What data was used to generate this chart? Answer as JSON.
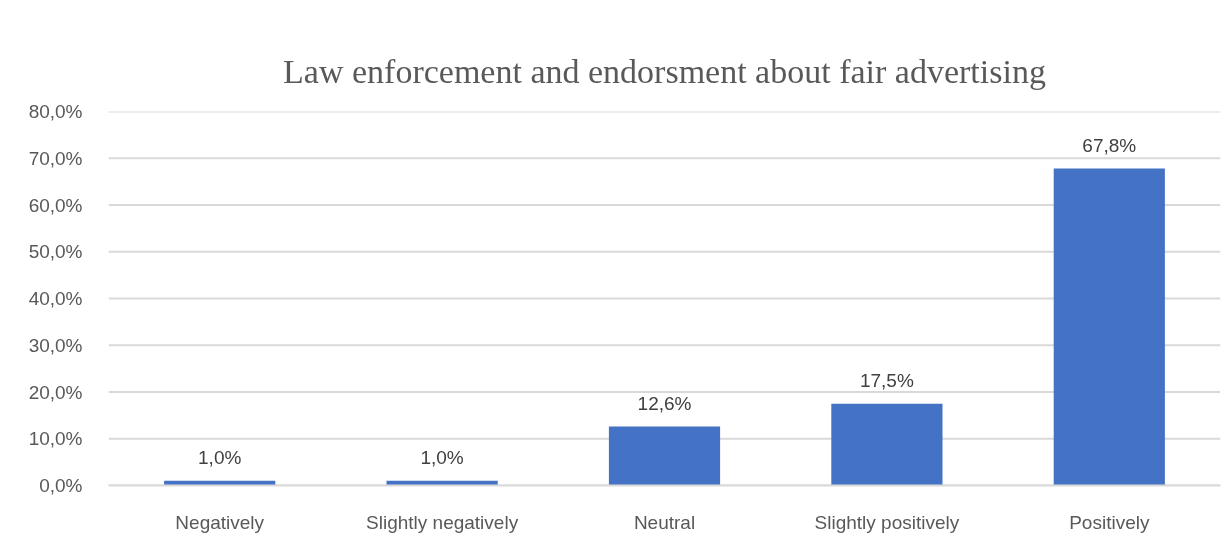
{
  "chart_data": {
    "type": "bar",
    "title": "Law enforcement and endorsment about fair advertising",
    "categories": [
      "Negatively",
      "Slightly negatively",
      "Neutral",
      "Slightly positively",
      "Positively"
    ],
    "values": [
      1.0,
      1.0,
      12.6,
      17.5,
      67.8
    ],
    "value_labels": [
      "1,0%",
      "1,0%",
      "12,6%",
      "17,5%",
      "67,8%"
    ],
    "color": "#4472c4",
    "ylim": [
      0,
      80
    ],
    "yticks": [
      {
        "value": 0,
        "label": "0,0%"
      },
      {
        "value": 10,
        "label": "10,0%"
      },
      {
        "value": 20,
        "label": "20,0%"
      },
      {
        "value": 30,
        "label": "30,0%"
      },
      {
        "value": 40,
        "label": "40,0%"
      },
      {
        "value": 50,
        "label": "50,0%"
      },
      {
        "value": 60,
        "label": "60,0%"
      },
      {
        "value": 70,
        "label": "70,0%"
      },
      {
        "value": 80,
        "label": "80,0%"
      }
    ],
    "grid": "y"
  }
}
